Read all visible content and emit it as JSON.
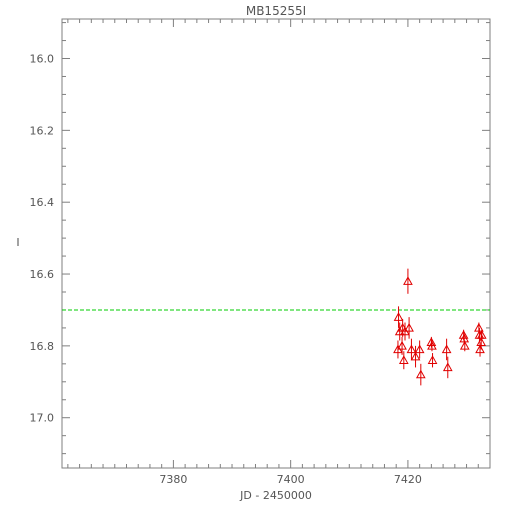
{
  "chart_data": {
    "type": "scatter",
    "title": "MB15255I",
    "xlabel": "JD - 2450000",
    "ylabel": "I",
    "xlim": [
      7361,
      7434
    ],
    "ylim": [
      17.14,
      15.89
    ],
    "y_inverted": true,
    "x_ticks": [
      7380,
      7400,
      7420
    ],
    "y_ticks": [
      16.0,
      16.2,
      16.4,
      16.6,
      16.8,
      17.0
    ],
    "x_tick_labels": [
      "7380",
      "7400",
      "7420"
    ],
    "y_tick_labels": [
      "16.0",
      "16.2",
      "16.4",
      "16.6",
      "16.8",
      "17.0"
    ],
    "reference_line": {
      "y": 16.7,
      "color": "#00cc00",
      "style": "dashed"
    },
    "marker": {
      "shape": "triangle-open",
      "color": "#e00000"
    },
    "points": [
      {
        "x": 7418.3,
        "y": 16.81,
        "err": 0.025
      },
      {
        "x": 7418.4,
        "y": 16.72,
        "err": 0.03
      },
      {
        "x": 7418.6,
        "y": 16.76,
        "err": 0.025
      },
      {
        "x": 7419.0,
        "y": 16.8,
        "err": 0.025
      },
      {
        "x": 7419.1,
        "y": 16.75,
        "err": 0.025
      },
      {
        "x": 7419.3,
        "y": 16.84,
        "err": 0.025
      },
      {
        "x": 7419.5,
        "y": 16.76,
        "err": 0.025
      },
      {
        "x": 7420.0,
        "y": 16.62,
        "err": 0.035
      },
      {
        "x": 7420.2,
        "y": 16.75,
        "err": 0.03
      },
      {
        "x": 7420.6,
        "y": 16.81,
        "err": 0.03
      },
      {
        "x": 7421.3,
        "y": 16.83,
        "err": 0.03
      },
      {
        "x": 7422.0,
        "y": 16.81,
        "err": 0.025
      },
      {
        "x": 7422.2,
        "y": 16.88,
        "err": 0.03
      },
      {
        "x": 7424.0,
        "y": 16.79,
        "err": 0.015
      },
      {
        "x": 7424.1,
        "y": 16.8,
        "err": 0.015
      },
      {
        "x": 7424.2,
        "y": 16.84,
        "err": 0.02
      },
      {
        "x": 7426.6,
        "y": 16.81,
        "err": 0.03
      },
      {
        "x": 7426.8,
        "y": 16.86,
        "err": 0.03
      },
      {
        "x": 7429.5,
        "y": 16.77,
        "err": 0.015
      },
      {
        "x": 7429.6,
        "y": 16.78,
        "err": 0.015
      },
      {
        "x": 7429.7,
        "y": 16.8,
        "err": 0.015
      },
      {
        "x": 7432.1,
        "y": 16.75,
        "err": 0.015
      },
      {
        "x": 7432.2,
        "y": 16.77,
        "err": 0.02
      },
      {
        "x": 7432.3,
        "y": 16.81,
        "err": 0.02
      },
      {
        "x": 7432.5,
        "y": 16.79,
        "err": 0.02
      },
      {
        "x": 7432.6,
        "y": 16.77,
        "err": 0.015
      }
    ]
  }
}
